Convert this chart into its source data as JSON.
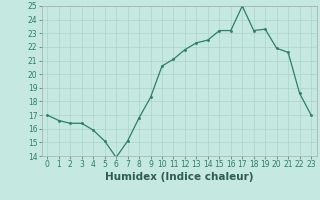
{
  "x": [
    0,
    1,
    2,
    3,
    4,
    5,
    6,
    7,
    8,
    9,
    10,
    11,
    12,
    13,
    14,
    15,
    16,
    17,
    18,
    19,
    20,
    21,
    22,
    23
  ],
  "y": [
    17,
    16.6,
    16.4,
    16.4,
    15.9,
    15.1,
    13.9,
    15.1,
    16.8,
    18.3,
    20.6,
    21.1,
    21.8,
    22.3,
    22.5,
    23.2,
    23.2,
    25.0,
    23.2,
    23.3,
    21.9,
    21.6,
    18.6,
    17.0
  ],
  "line_color": "#2e7d6e",
  "marker_color": "#2e7d6e",
  "bg_color": "#c5e8e0",
  "grid_color": "#aad4cb",
  "xlabel": "Humidex (Indice chaleur)",
  "ylim": [
    14,
    25
  ],
  "xlim": [
    -0.5,
    23.5
  ],
  "yticks": [
    14,
    15,
    16,
    17,
    18,
    19,
    20,
    21,
    22,
    23,
    24,
    25
  ],
  "xticks": [
    0,
    1,
    2,
    3,
    4,
    5,
    6,
    7,
    8,
    9,
    10,
    11,
    12,
    13,
    14,
    15,
    16,
    17,
    18,
    19,
    20,
    21,
    22,
    23
  ],
  "tick_fontsize": 5.5,
  "xlabel_fontsize": 7.5
}
